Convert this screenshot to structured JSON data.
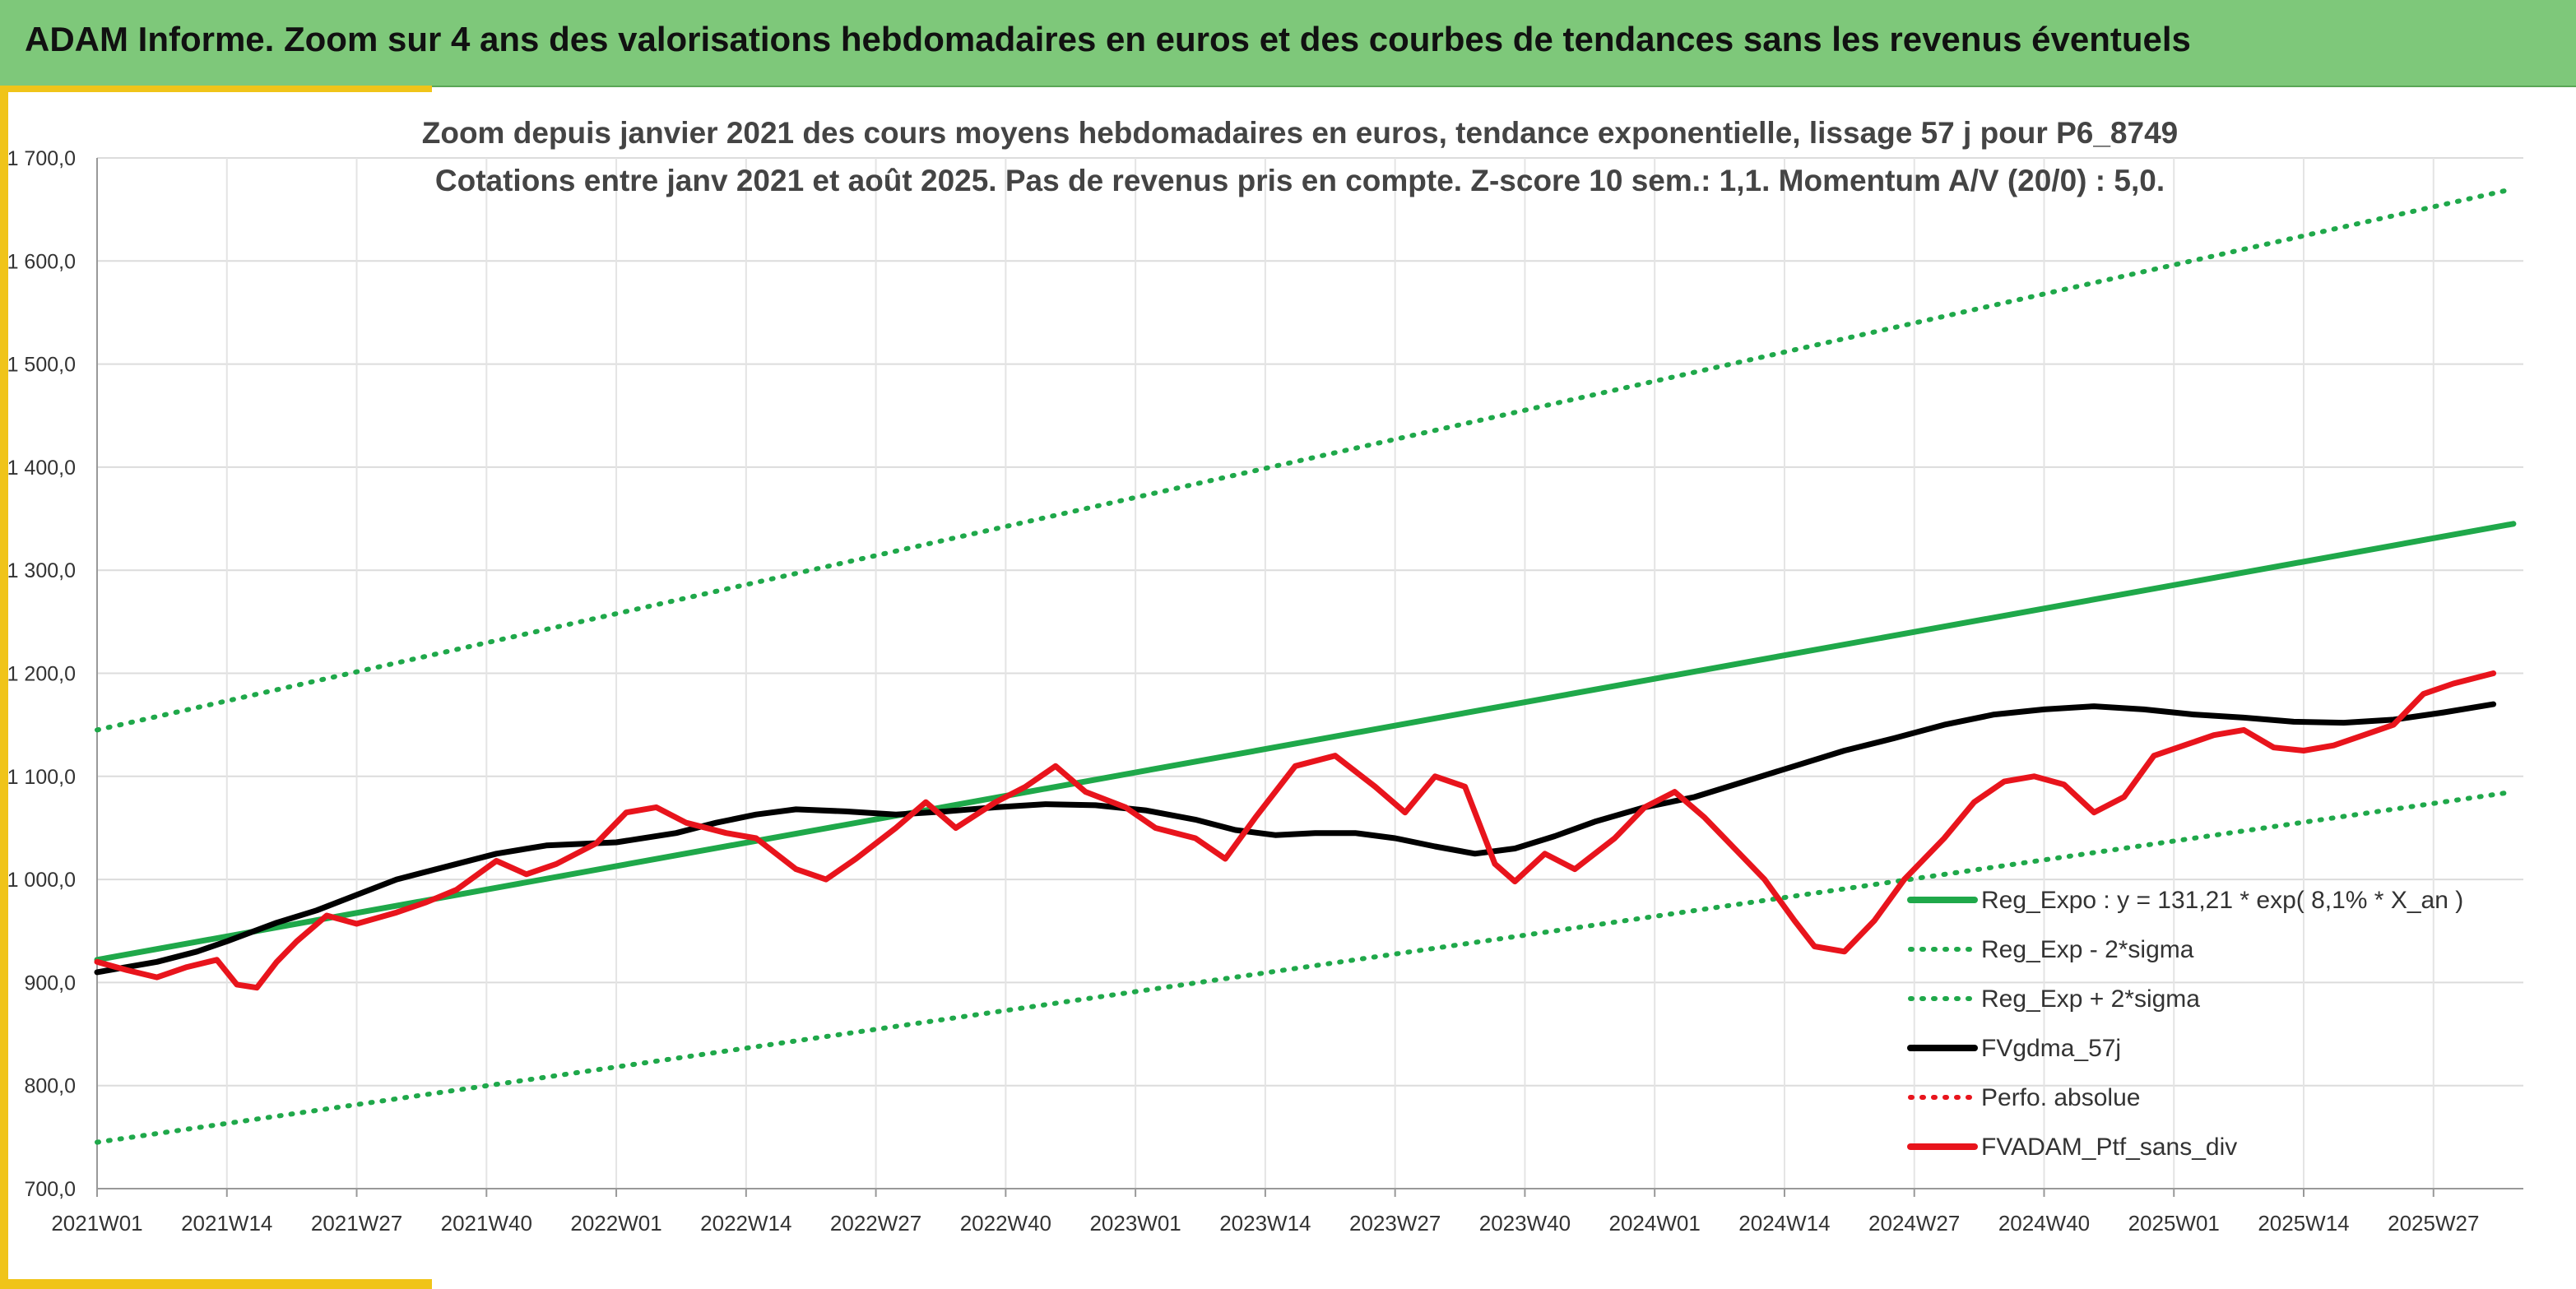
{
  "header": {
    "title": "ADAM Informe. Zoom sur 4 ans des valorisations hebdomadaires en euros et des courbes de tendances sans les revenus éventuels"
  },
  "colors": {
    "header_bg": "#7ec87a",
    "accent": "#f0c419",
    "trend": "#1fa84a",
    "sma": "#000000",
    "portfolio": "#e8141c"
  },
  "chart_data": {
    "type": "line",
    "title_lines": [
      "Zoom depuis janvier 2021 des cours moyens hebdomadaires en euros, tendance exponentielle, lissage 57 j pour P6_8749",
      "Cotations entre janv 2021 et août 2025. Pas de revenus pris en compte. Z-score 10 sem.: 1,1. Momentum A/V (20/0) : 5,0."
    ],
    "ylim": [
      700,
      1700
    ],
    "y_ticks": [
      "700,0",
      "800,0",
      "900,0",
      "1 000,0",
      "1 100,0",
      "1 200,0",
      "1 300,0",
      "1 400,0",
      "1 500,0",
      "1 600,0",
      "1 700,0"
    ],
    "x_ticks": [
      "2021W01",
      "2021W14",
      "2021W27",
      "2021W40",
      "2022W01",
      "2022W14",
      "2022W27",
      "2022W40",
      "2023W01",
      "2023W14",
      "2023W27",
      "2023W40",
      "2024W01",
      "2024W14",
      "2024W27",
      "2024W40",
      "2025W01",
      "2025W14",
      "2025W27"
    ],
    "weeks_total": 243,
    "grid": "horizontal and vertical",
    "legend_position": "bottom-right",
    "legend": [
      {
        "label": "Reg_Expo : y = 131,21 * exp( 8,1% *  X_an )",
        "style": "solid",
        "color": "#1fa84a"
      },
      {
        "label": "Reg_Exp - 2*sigma",
        "style": "dotted",
        "color": "#1fa84a"
      },
      {
        "label": "Reg_Exp + 2*sigma",
        "style": "dotted",
        "color": "#1fa84a"
      },
      {
        "label": "FVgdma_57j",
        "style": "solid",
        "color": "#000000"
      },
      {
        "label": "Perfo. absolue",
        "style": "dotted",
        "color": "#e8141c"
      },
      {
        "label": "FVADAM_Ptf_sans_div",
        "style": "solid",
        "color": "#e8141c"
      }
    ],
    "series": [
      {
        "name": "Reg_Expo : y = 131,21 * exp( 8,1% *  X_an )",
        "style": "solid",
        "color": "#1fa84a",
        "points": [
          [
            0,
            922
          ],
          [
            242,
            1345
          ]
        ]
      },
      {
        "name": "Reg_Exp - 2*sigma",
        "style": "dotted",
        "color": "#1fa84a",
        "points": [
          [
            0,
            745
          ],
          [
            242,
            1085
          ]
        ]
      },
      {
        "name": "Reg_Exp + 2*sigma",
        "style": "dotted",
        "color": "#1fa84a",
        "points": [
          [
            0,
            1145
          ],
          [
            242,
            1670
          ]
        ]
      },
      {
        "name": "FVgdma_57j",
        "style": "solid",
        "color": "#000000",
        "points": [
          [
            0,
            910
          ],
          [
            6,
            920
          ],
          [
            10,
            930
          ],
          [
            13,
            940
          ],
          [
            18,
            958
          ],
          [
            22,
            970
          ],
          [
            26,
            985
          ],
          [
            30,
            1000
          ],
          [
            36,
            1015
          ],
          [
            40,
            1025
          ],
          [
            45,
            1033
          ],
          [
            52,
            1036
          ],
          [
            58,
            1045
          ],
          [
            62,
            1055
          ],
          [
            66,
            1063
          ],
          [
            70,
            1068
          ],
          [
            75,
            1066
          ],
          [
            80,
            1063
          ],
          [
            85,
            1066
          ],
          [
            90,
            1070
          ],
          [
            95,
            1073
          ],
          [
            100,
            1072
          ],
          [
            105,
            1067
          ],
          [
            110,
            1058
          ],
          [
            114,
            1048
          ],
          [
            118,
            1043
          ],
          [
            122,
            1045
          ],
          [
            126,
            1045
          ],
          [
            130,
            1040
          ],
          [
            134,
            1032
          ],
          [
            138,
            1025
          ],
          [
            142,
            1030
          ],
          [
            146,
            1042
          ],
          [
            150,
            1056
          ],
          [
            155,
            1070
          ],
          [
            160,
            1080
          ],
          [
            165,
            1095
          ],
          [
            170,
            1110
          ],
          [
            175,
            1125
          ],
          [
            180,
            1137
          ],
          [
            185,
            1150
          ],
          [
            190,
            1160
          ],
          [
            195,
            1165
          ],
          [
            200,
            1168
          ],
          [
            205,
            1165
          ],
          [
            210,
            1160
          ],
          [
            215,
            1157
          ],
          [
            220,
            1153
          ],
          [
            225,
            1152
          ],
          [
            230,
            1155
          ],
          [
            235,
            1162
          ],
          [
            240,
            1170
          ]
        ]
      },
      {
        "name": "FVADAM_Ptf_sans_div",
        "style": "solid",
        "color": "#e8141c",
        "points": [
          [
            0,
            920
          ],
          [
            3,
            912
          ],
          [
            6,
            905
          ],
          [
            9,
            915
          ],
          [
            12,
            922
          ],
          [
            14,
            898
          ],
          [
            16,
            895
          ],
          [
            18,
            920
          ],
          [
            20,
            940
          ],
          [
            23,
            965
          ],
          [
            26,
            957
          ],
          [
            30,
            968
          ],
          [
            33,
            978
          ],
          [
            36,
            990
          ],
          [
            40,
            1018
          ],
          [
            43,
            1005
          ],
          [
            46,
            1015
          ],
          [
            50,
            1035
          ],
          [
            53,
            1065
          ],
          [
            56,
            1070
          ],
          [
            59,
            1055
          ],
          [
            63,
            1045
          ],
          [
            66,
            1040
          ],
          [
            70,
            1010
          ],
          [
            73,
            1000
          ],
          [
            76,
            1020
          ],
          [
            80,
            1050
          ],
          [
            83,
            1075
          ],
          [
            86,
            1050
          ],
          [
            90,
            1075
          ],
          [
            93,
            1090
          ],
          [
            96,
            1110
          ],
          [
            99,
            1085
          ],
          [
            103,
            1070
          ],
          [
            106,
            1050
          ],
          [
            110,
            1040
          ],
          [
            113,
            1020
          ],
          [
            116,
            1060
          ],
          [
            120,
            1110
          ],
          [
            124,
            1120
          ],
          [
            128,
            1090
          ],
          [
            131,
            1065
          ],
          [
            134,
            1100
          ],
          [
            137,
            1090
          ],
          [
            140,
            1015
          ],
          [
            142,
            998
          ],
          [
            145,
            1025
          ],
          [
            148,
            1010
          ],
          [
            152,
            1040
          ],
          [
            155,
            1070
          ],
          [
            158,
            1085
          ],
          [
            161,
            1060
          ],
          [
            164,
            1030
          ],
          [
            167,
            1000
          ],
          [
            170,
            960
          ],
          [
            172,
            935
          ],
          [
            175,
            930
          ],
          [
            178,
            960
          ],
          [
            181,
            1000
          ],
          [
            185,
            1040
          ],
          [
            188,
            1075
          ],
          [
            191,
            1095
          ],
          [
            194,
            1100
          ],
          [
            197,
            1092
          ],
          [
            200,
            1065
          ],
          [
            203,
            1080
          ],
          [
            206,
            1120
          ],
          [
            209,
            1130
          ],
          [
            212,
            1140
          ],
          [
            215,
            1145
          ],
          [
            218,
            1128
          ],
          [
            221,
            1125
          ],
          [
            224,
            1130
          ],
          [
            227,
            1140
          ],
          [
            230,
            1150
          ],
          [
            233,
            1180
          ],
          [
            236,
            1190
          ],
          [
            240,
            1200
          ]
        ]
      }
    ]
  }
}
